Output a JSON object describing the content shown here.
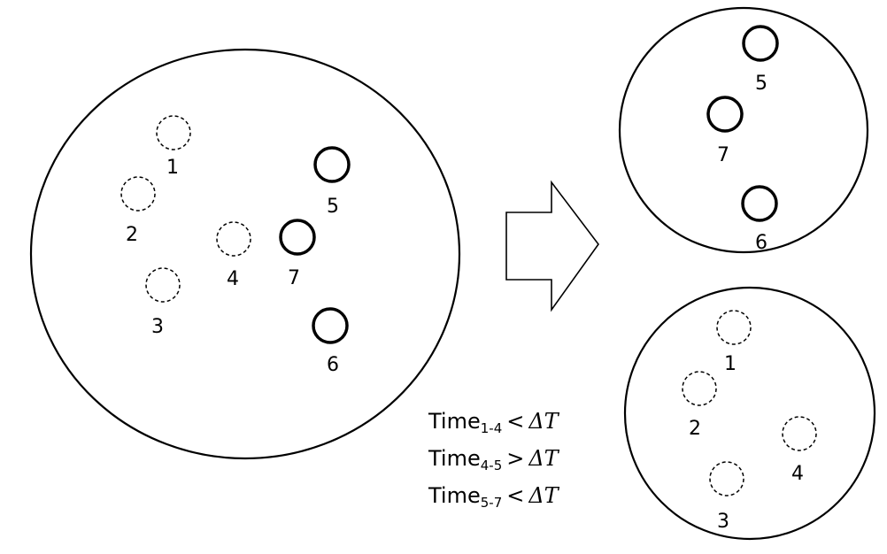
{
  "left_cluster": {
    "dashed_points": [
      {
        "label": "1"
      },
      {
        "label": "2"
      },
      {
        "label": "3"
      },
      {
        "label": "4"
      }
    ],
    "solid_points": [
      {
        "label": "5"
      },
      {
        "label": "7"
      },
      {
        "label": "6"
      }
    ]
  },
  "top_right_cluster": {
    "solid_points": [
      {
        "label": "5"
      },
      {
        "label": "7"
      },
      {
        "label": "6"
      }
    ]
  },
  "bottom_right_cluster": {
    "dashed_points": [
      {
        "label": "1"
      },
      {
        "label": "2"
      },
      {
        "label": "4"
      },
      {
        "label": "3"
      }
    ]
  },
  "conditions": [
    {
      "prefix": "Time",
      "sub": "1-4",
      "op": "<",
      "delta": "ΔT"
    },
    {
      "prefix": "Time",
      "sub": "4-5",
      "op": ">",
      "delta": "ΔT"
    },
    {
      "prefix": "Time",
      "sub": "5-7",
      "op": "<",
      "delta": "ΔT"
    }
  ]
}
